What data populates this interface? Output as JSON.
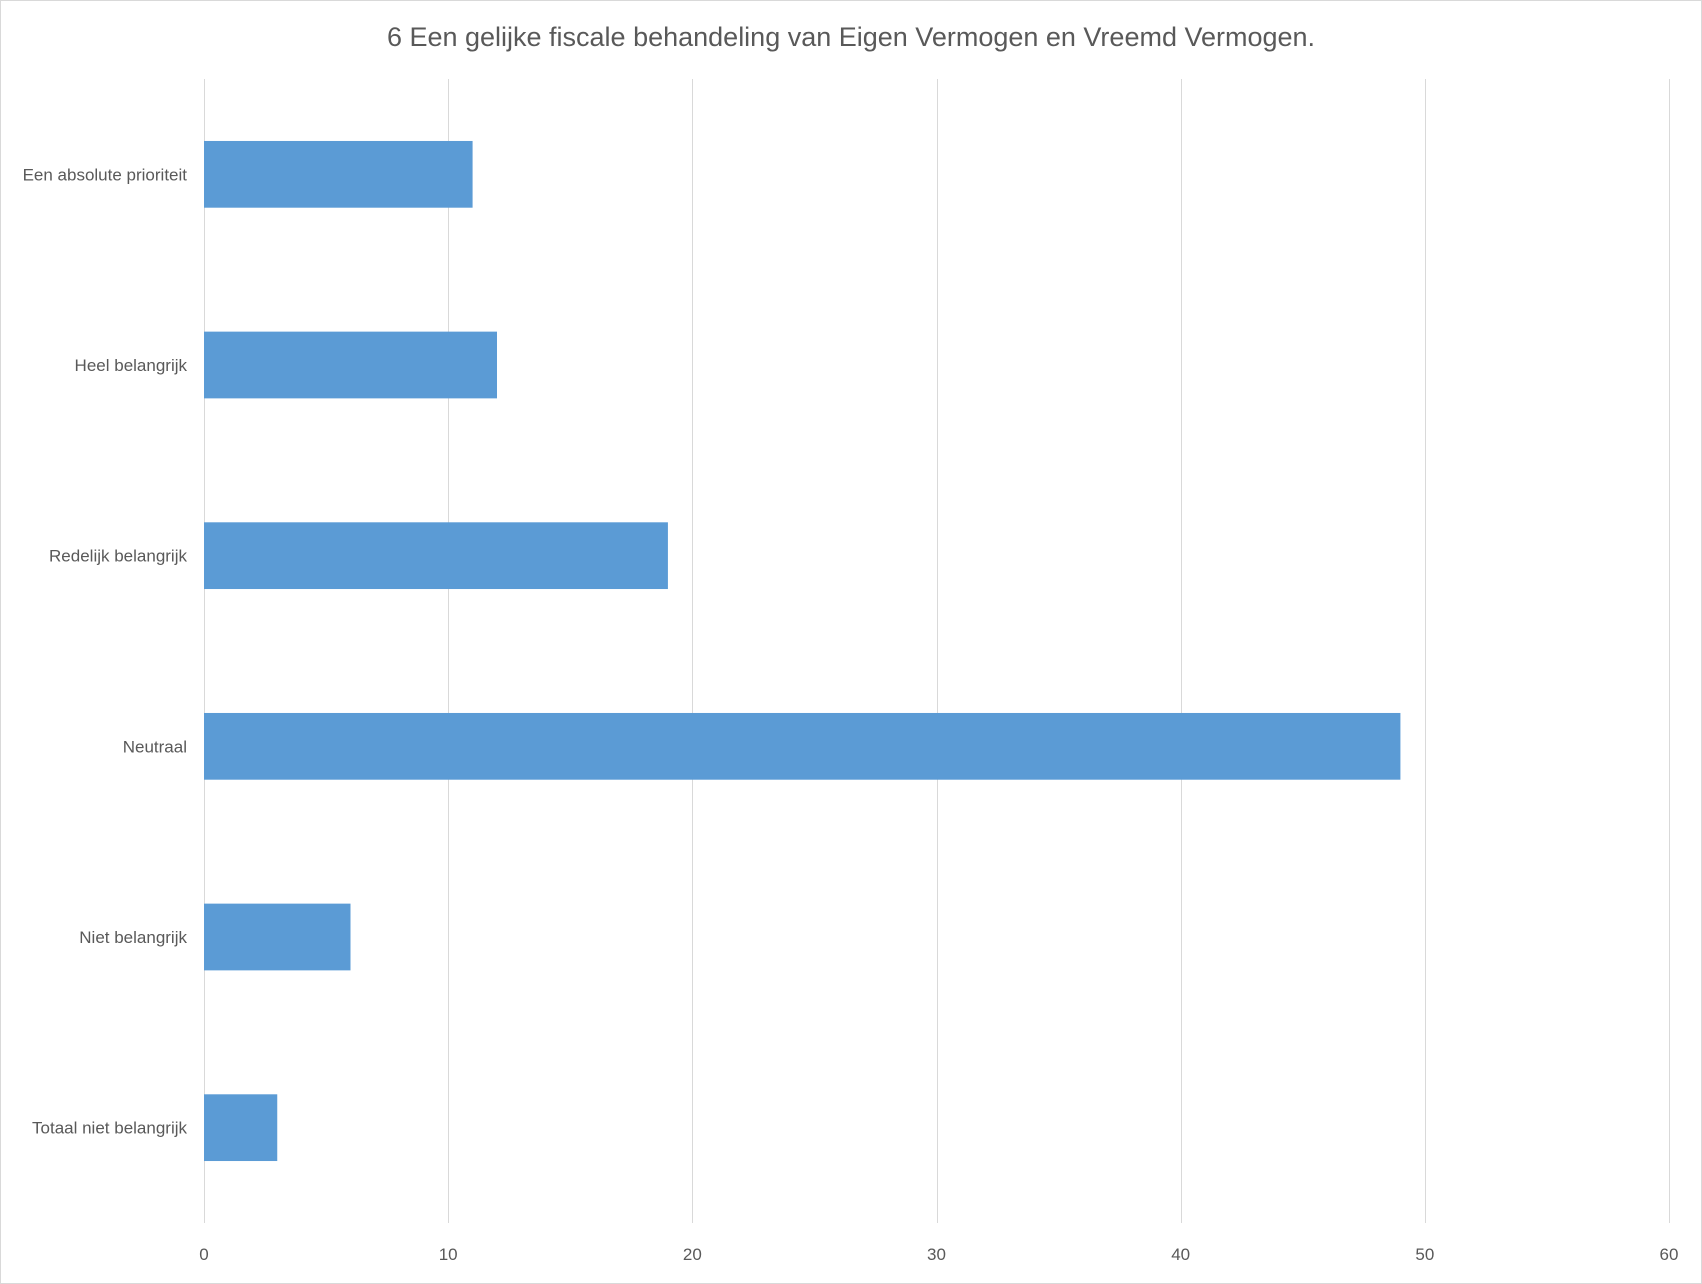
{
  "chart_data": {
    "type": "bar",
    "orientation": "horizontal",
    "title": "6 Een gelijke fiscale behandeling van Eigen Vermogen en Vreemd Vermogen.",
    "categories": [
      "Een absolute prioriteit",
      "Heel belangrijk",
      "Redelijk belangrijk",
      "Neutraal",
      "Niet belangrijk",
      "Totaal niet belangrijk"
    ],
    "values": [
      11,
      12,
      19,
      49,
      6,
      3
    ],
    "xlim": [
      0,
      60
    ],
    "xticks": [
      0,
      10,
      20,
      30,
      40,
      50,
      60
    ],
    "grid": "vertical",
    "legend": "none",
    "bar_color": "#5b9bd5"
  }
}
